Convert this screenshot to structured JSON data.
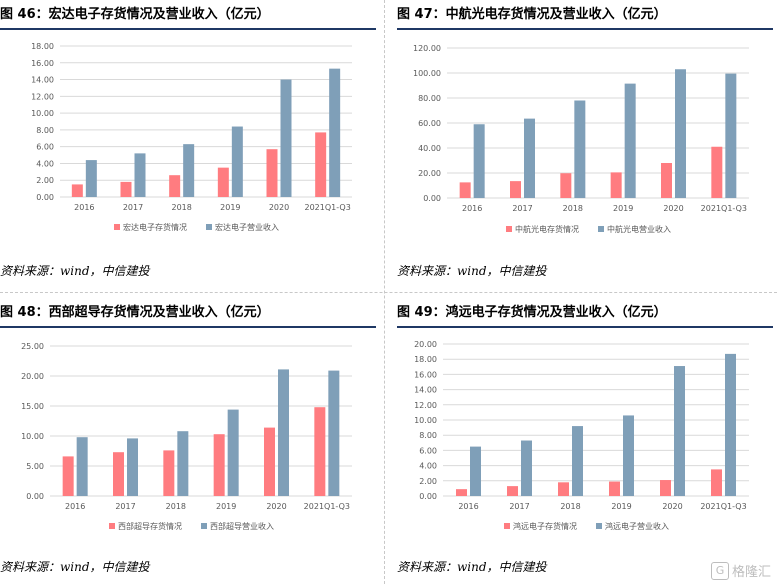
{
  "source_text": "资料来源：wind，中信建投",
  "watermark_text": "格隆汇",
  "watermark_glyph": "G",
  "colors": {
    "inventory": "#ff7c80",
    "revenue": "#7f9fb8",
    "rule": "#1f3864",
    "grid": "#d9d9d9",
    "axis": "#595959"
  },
  "chart_data": [
    {
      "title": "图 46：宏达电子存货情况及营业收入（亿元）",
      "type": "bar",
      "categories": [
        "2016",
        "2017",
        "2018",
        "2019",
        "2020",
        "2021Q1-Q3"
      ],
      "ylim": [
        0,
        18
      ],
      "yticks": [
        "0.00",
        "2.00",
        "4.00",
        "6.00",
        "8.00",
        "10.00",
        "12.00",
        "14.00",
        "16.00",
        "18.00"
      ],
      "legend_position": "bottom",
      "series": [
        {
          "name": "宏达电子存货情况",
          "values": [
            1.5,
            1.8,
            2.6,
            3.5,
            5.7,
            7.7
          ]
        },
        {
          "name": "宏达电子营业收入",
          "values": [
            4.4,
            5.2,
            6.3,
            8.4,
            14.0,
            15.3
          ]
        }
      ]
    },
    {
      "title": "图 47：中航光电存货情况及营业收入（亿元）",
      "type": "bar",
      "categories": [
        "2016",
        "2017",
        "2018",
        "2019",
        "2020",
        "2021Q1-Q3"
      ],
      "ylim": [
        0,
        120
      ],
      "yticks": [
        "0.00",
        "20.00",
        "40.00",
        "60.00",
        "80.00",
        "100.00",
        "120.00"
      ],
      "legend_position": "bottom",
      "series": [
        {
          "name": "中航光电存货情况",
          "values": [
            12.5,
            13.5,
            19.8,
            20.5,
            28.0,
            41.0
          ]
        },
        {
          "name": "中航光电营业收入",
          "values": [
            59.0,
            63.5,
            78.0,
            91.5,
            103.0,
            99.5
          ]
        }
      ]
    },
    {
      "title": "图 48：西部超导存货情况及营业收入（亿元）",
      "type": "bar",
      "categories": [
        "2016",
        "2017",
        "2018",
        "2019",
        "2020",
        "2021Q1-Q3"
      ],
      "ylim": [
        0,
        25
      ],
      "yticks": [
        "0.00",
        "5.00",
        "10.00",
        "15.00",
        "20.00",
        "25.00"
      ],
      "legend_position": "bottom",
      "series": [
        {
          "name": "西部超导存货情况",
          "values": [
            6.6,
            7.3,
            7.6,
            10.3,
            11.4,
            14.8
          ]
        },
        {
          "name": "西部超导营业收入",
          "values": [
            9.8,
            9.6,
            10.8,
            14.4,
            21.1,
            20.9
          ]
        }
      ]
    },
    {
      "title": "图 49：鸿远电子存货情况及营业收入（亿元）",
      "type": "bar",
      "categories": [
        "2016",
        "2017",
        "2018",
        "2019",
        "2020",
        "2021Q1-Q3"
      ],
      "ylim": [
        0,
        20
      ],
      "yticks": [
        "0.00",
        "2.00",
        "4.00",
        "6.00",
        "8.00",
        "10.00",
        "12.00",
        "14.00",
        "16.00",
        "18.00",
        "20.00"
      ],
      "legend_position": "bottom",
      "series": [
        {
          "name": "鸿远电子存货情况",
          "values": [
            0.9,
            1.3,
            1.8,
            1.9,
            2.1,
            3.5
          ]
        },
        {
          "name": "鸿远电子营业收入",
          "values": [
            6.5,
            7.3,
            9.2,
            10.6,
            17.1,
            18.7
          ]
        }
      ]
    }
  ]
}
